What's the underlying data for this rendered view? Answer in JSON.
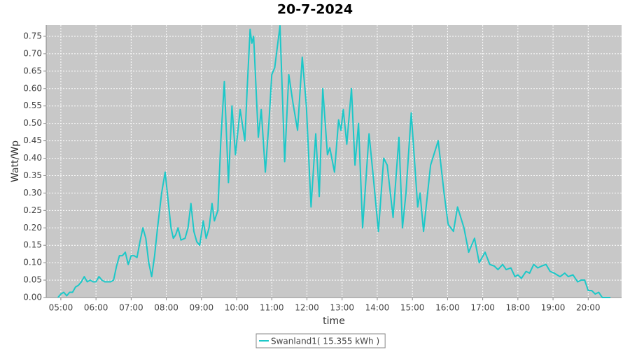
{
  "chart_data": {
    "type": "line",
    "title": "20-7-2024",
    "x_label": "time",
    "y_label": "Watt/Wp",
    "legend": "bottom",
    "grid": true,
    "xlim": [
      "04:35",
      "20:57"
    ],
    "xticks": [
      "05:00",
      "06:00",
      "07:00",
      "08:00",
      "09:00",
      "10:00",
      "11:00",
      "12:00",
      "13:00",
      "14:00",
      "15:00",
      "16:00",
      "17:00",
      "18:00",
      "19:00",
      "20:00"
    ],
    "ylim": [
      0,
      0.782
    ],
    "yticks": [
      {
        "value": 0,
        "label": "0.00"
      },
      {
        "value": 0.05,
        "label": "0.05"
      },
      {
        "value": 0.1,
        "label": "0.10"
      },
      {
        "value": 0.15,
        "label": "0.15"
      },
      {
        "value": 0.2,
        "label": "0.20"
      },
      {
        "value": 0.25,
        "label": "0.25"
      },
      {
        "value": 0.3,
        "label": "0.30"
      },
      {
        "value": 0.35,
        "label": "0.35"
      },
      {
        "value": 0.4,
        "label": "0.40"
      },
      {
        "value": 0.45,
        "label": "0.45"
      },
      {
        "value": 0.5,
        "label": "0.50"
      },
      {
        "value": 0.55,
        "label": "0.55"
      },
      {
        "value": 0.6,
        "label": "0.60"
      },
      {
        "value": 0.65,
        "label": "0.65"
      },
      {
        "value": 0.7,
        "label": "0.70"
      },
      {
        "value": 0.75,
        "label": "0.75"
      }
    ],
    "x": [
      "04:55",
      "05:00",
      "05:05",
      "05:10",
      "05:15",
      "05:20",
      "05:25",
      "05:30",
      "05:35",
      "05:40",
      "05:45",
      "05:50",
      "05:55",
      "06:00",
      "06:05",
      "06:10",
      "06:15",
      "06:20",
      "06:25",
      "06:30",
      "06:35",
      "06:40",
      "06:45",
      "06:50",
      "06:55",
      "07:00",
      "07:05",
      "07:10",
      "07:15",
      "07:20",
      "07:25",
      "07:30",
      "07:35",
      "07:40",
      "07:45",
      "07:52",
      "07:58",
      "08:03",
      "08:08",
      "08:12",
      "08:16",
      "08:20",
      "08:25",
      "08:32",
      "08:37",
      "08:42",
      "08:47",
      "08:52",
      "08:57",
      "09:03",
      "09:08",
      "09:13",
      "09:18",
      "09:22",
      "09:28",
      "09:33",
      "09:39",
      "09:46",
      "09:52",
      "09:58",
      "10:06",
      "10:14",
      "10:18",
      "10:23",
      "10:26",
      "10:29",
      "10:37",
      "10:42",
      "10:49",
      "10:55",
      "11:00",
      "11:05",
      "11:14",
      "11:22",
      "11:29",
      "11:36",
      "11:44",
      "11:52",
      "11:59",
      "12:07",
      "12:15",
      "12:21",
      "12:27",
      "12:35",
      "12:39",
      "12:47",
      "12:54",
      "12:58",
      "13:02",
      "13:08",
      "13:16",
      "13:22",
      "13:28",
      "13:35",
      "13:46",
      "13:53",
      "14:02",
      "14:11",
      "14:17",
      "14:27",
      "14:37",
      "14:43",
      "14:49",
      "14:58",
      "15:09",
      "15:13",
      "15:19",
      "15:31",
      "15:44",
      "15:54",
      "16:01",
      "16:10",
      "16:17",
      "16:28",
      "16:36",
      "16:46",
      "16:54",
      "17:04",
      "17:12",
      "17:20",
      "17:26",
      "17:34",
      "17:40",
      "17:48",
      "17:55",
      "18:00",
      "18:06",
      "18:14",
      "18:20",
      "18:27",
      "18:34",
      "18:40",
      "18:48",
      "18:55",
      "19:02",
      "19:12",
      "19:20",
      "19:26",
      "19:34",
      "19:42",
      "19:48",
      "19:54",
      "20:00",
      "20:06",
      "20:12",
      "20:18",
      "20:24",
      "20:38"
    ],
    "series": [
      {
        "name": "Swanland1( 15.355 kWh )",
        "color": "#1cc8c8",
        "values": [
          0,
          0.01,
          0.015,
          0.005,
          0.015,
          0.015,
          0.03,
          0.035,
          0.045,
          0.06,
          0.045,
          0.05,
          0.045,
          0.045,
          0.06,
          0.05,
          0.045,
          0.045,
          0.045,
          0.05,
          0.09,
          0.12,
          0.12,
          0.13,
          0.095,
          0.12,
          0.12,
          0.115,
          0.16,
          0.2,
          0.17,
          0.1,
          0.06,
          0.12,
          0.2,
          0.3,
          0.36,
          0.28,
          0.2,
          0.17,
          0.18,
          0.2,
          0.165,
          0.17,
          0.2,
          0.27,
          0.19,
          0.16,
          0.15,
          0.22,
          0.17,
          0.2,
          0.27,
          0.22,
          0.25,
          0.45,
          0.62,
          0.33,
          0.55,
          0.41,
          0.54,
          0.45,
          0.6,
          0.77,
          0.73,
          0.75,
          0.46,
          0.54,
          0.36,
          0.5,
          0.64,
          0.66,
          0.78,
          0.39,
          0.64,
          0.56,
          0.48,
          0.69,
          0.55,
          0.26,
          0.47,
          0.29,
          0.6,
          0.41,
          0.43,
          0.36,
          0.51,
          0.48,
          0.54,
          0.44,
          0.6,
          0.38,
          0.5,
          0.2,
          0.47,
          0.35,
          0.19,
          0.4,
          0.38,
          0.23,
          0.46,
          0.2,
          0.3,
          0.53,
          0.26,
          0.3,
          0.19,
          0.38,
          0.45,
          0.3,
          0.21,
          0.19,
          0.26,
          0.2,
          0.13,
          0.17,
          0.1,
          0.13,
          0.095,
          0.09,
          0.08,
          0.095,
          0.08,
          0.085,
          0.06,
          0.065,
          0.055,
          0.075,
          0.07,
          0.095,
          0.085,
          0.09,
          0.095,
          0.075,
          0.07,
          0.06,
          0.07,
          0.06,
          0.065,
          0.045,
          0.05,
          0.05,
          0.02,
          0.02,
          0.01,
          0.015,
          0,
          0
        ]
      }
    ]
  }
}
